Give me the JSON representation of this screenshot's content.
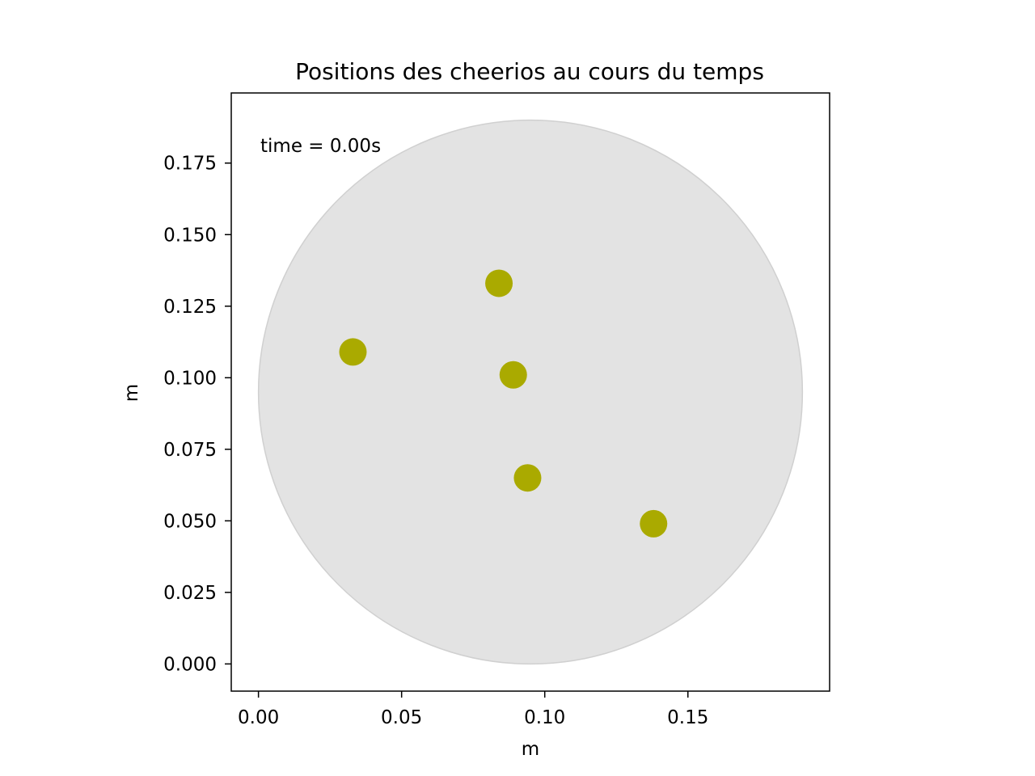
{
  "chart_data": {
    "type": "scatter",
    "title": "Positions des cheerios au cours du temps",
    "xlabel": "m",
    "ylabel": "m",
    "xlim": [
      -0.0095,
      0.1995
    ],
    "ylim": [
      -0.0095,
      0.1995
    ],
    "xticks": [
      0.0,
      0.05,
      0.1,
      0.15
    ],
    "xtick_labels": [
      "0.00",
      "0.05",
      "0.10",
      "0.15"
    ],
    "yticks": [
      0.0,
      0.025,
      0.05,
      0.075,
      0.1,
      0.125,
      0.15,
      0.175
    ],
    "ytick_labels": [
      "0.000",
      "0.025",
      "0.050",
      "0.075",
      "0.100",
      "0.125",
      "0.150",
      "0.175"
    ],
    "grid": false,
    "annotation": "time = 0.00s",
    "container": {
      "shape": "circle",
      "center": [
        0.095,
        0.095
      ],
      "radius": 0.095,
      "color": "#e3e3e3",
      "edge_color": "#d0d0d0"
    },
    "series": [
      {
        "color": "#aaaa00",
        "points": [
          {
            "x": 0.033,
            "y": 0.109
          },
          {
            "x": 0.084,
            "y": 0.133
          },
          {
            "x": 0.089,
            "y": 0.101
          },
          {
            "x": 0.094,
            "y": 0.065
          },
          {
            "x": 0.138,
            "y": 0.049
          }
        ]
      }
    ]
  }
}
